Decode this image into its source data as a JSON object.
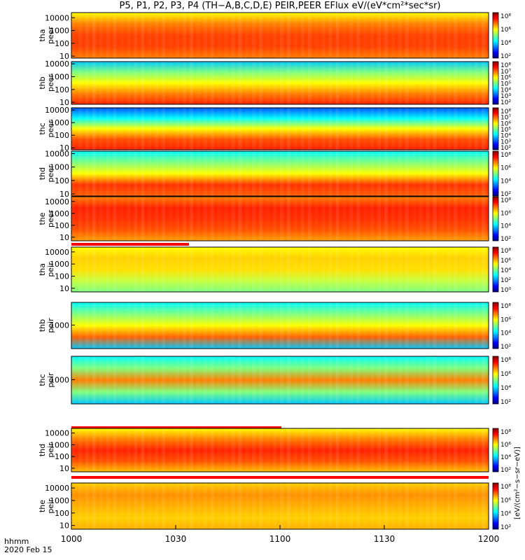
{
  "title": "P5, P1, P2, P3, P4 (TH−A,B,C,D,E) PEIR,PEER EFlux eV/(eV*cm²*sec*sr)",
  "xaxis": {
    "label_line1": "hhmm",
    "label_line2": "2020 Feb 15"
  },
  "chart_data": [
    {
      "type": "heatmap",
      "panel": "tha_peer",
      "ylabel": [
        "tha",
        "peer"
      ],
      "yscale": "log",
      "yticks": [
        "10",
        "100",
        "1000",
        "10000"
      ],
      "ylim": [
        7,
        25000
      ],
      "cbar_ticks": [
        "10⁸",
        "10⁶",
        "10⁴",
        "10²"
      ],
      "status_bar": false
    },
    {
      "type": "heatmap",
      "panel": "thb_peer",
      "ylabel": [
        "thb",
        "peer"
      ],
      "yscale": "log",
      "yticks": [
        "10",
        "100",
        "1000",
        "10000"
      ],
      "ylim": [
        7,
        15000
      ],
      "cbar_ticks": [
        "10⁸",
        "10⁷",
        "10⁶",
        "10⁵",
        "10⁴",
        "10³",
        "10²"
      ],
      "status_bar": false
    },
    {
      "type": "heatmap",
      "panel": "thc_peer",
      "ylabel": [
        "thc",
        "peer"
      ],
      "yscale": "log",
      "yticks": [
        "10",
        "100",
        "1000",
        "10000"
      ],
      "ylim": [
        7,
        15000
      ],
      "cbar_ticks": [
        "10⁸",
        "10⁷",
        "10⁶",
        "10⁵",
        "10⁴",
        "10³",
        "10²"
      ],
      "status_bar": false
    },
    {
      "type": "heatmap",
      "panel": "thd_peer",
      "ylabel": [
        "thd",
        "peer"
      ],
      "yscale": "log",
      "yticks": [
        "10",
        "100",
        "1000",
        "10000"
      ],
      "ylim": [
        7,
        15000
      ],
      "cbar_ticks": [
        "10⁸",
        "10⁶",
        "10⁴",
        "10²"
      ],
      "status_bar": false
    },
    {
      "type": "heatmap",
      "panel": "the_peer",
      "ylabel": [
        "the",
        "peer"
      ],
      "yscale": "log",
      "yticks": [
        "10",
        "100",
        "1000",
        "10000"
      ],
      "ylim": [
        5,
        25000
      ],
      "cbar_ticks": [
        "10⁸",
        "10⁶",
        "10⁴",
        "10²"
      ],
      "status_bar": true
    },
    {
      "type": "heatmap",
      "panel": "tha_peir",
      "ylabel": [
        "tha",
        "peir"
      ],
      "yscale": "log",
      "yticks": [
        "10",
        "100",
        "1000",
        "10000"
      ],
      "ylim": [
        5,
        25000
      ],
      "cbar_ticks": [
        "10⁸",
        "10⁶",
        "10⁴",
        "10²",
        "10⁰"
      ],
      "status_bar": false
    },
    {
      "type": "heatmap",
      "panel": "thb_peir",
      "ylabel": [
        "thb",
        "peir"
      ],
      "yscale": "log",
      "yticks": [
        "1000"
      ],
      "ylim": [
        60,
        15000
      ],
      "cbar_ticks": [
        "10⁸",
        "10⁶",
        "10⁴",
        "10²"
      ],
      "status_bar": false
    },
    {
      "type": "heatmap",
      "panel": "thc_peir",
      "ylabel": [
        "thc",
        "peir"
      ],
      "yscale": "log",
      "yticks": [
        "1000"
      ],
      "ylim": [
        60,
        15000
      ],
      "cbar_ticks": [
        "10⁸",
        "10⁶",
        "10⁴",
        "10²"
      ],
      "status_bar": true
    },
    {
      "type": "heatmap",
      "panel": "thd_peir",
      "ylabel": [
        "thd",
        "peir"
      ],
      "yscale": "log",
      "yticks": [
        "10",
        "100",
        "1000",
        "10000"
      ],
      "ylim": [
        5,
        25000
      ],
      "cbar_ticks": [
        "10⁸",
        "10⁶",
        "10⁴",
        "10²"
      ],
      "status_bar": true
    },
    {
      "type": "heatmap",
      "panel": "the_peir",
      "ylabel": [
        "the",
        "peir"
      ],
      "yscale": "log",
      "yticks": [
        "10",
        "100",
        "1000",
        "10000"
      ],
      "ylim": [
        5,
        25000
      ],
      "cbar_ticks": [
        "10⁸",
        "10⁶",
        "10⁴",
        "10²"
      ],
      "status_bar": false
    }
  ],
  "time_axis": {
    "ticks": [
      "1000",
      "1030",
      "1100",
      "1130",
      "1200"
    ]
  },
  "colorbar_label": "[eV/(cm²−s−sr−eV)]",
  "colors": {
    "status": "#ff0000",
    "ink": "#000000"
  }
}
